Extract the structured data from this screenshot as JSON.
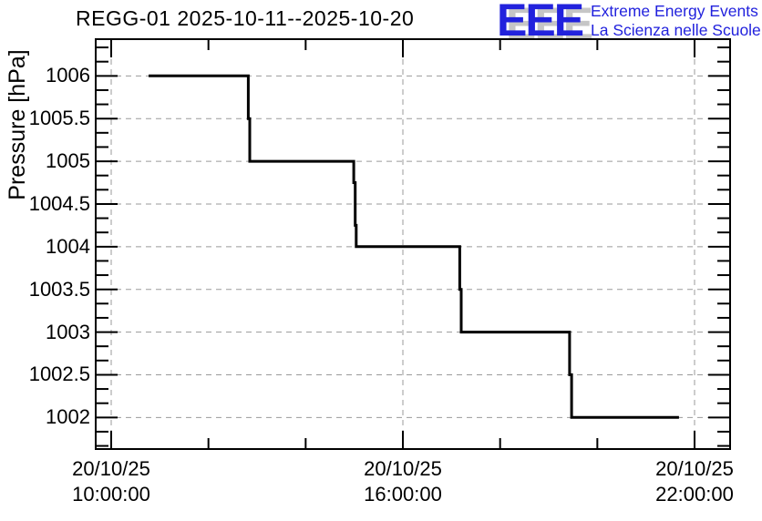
{
  "header": {
    "title": "REGG-01 2025-10-11--2025-10-20",
    "logo": {
      "acronym": "EEE",
      "line1": "Extreme Energy Events",
      "line2": "La Scienza nelle Scuole",
      "blue": "#2222dd",
      "shadow_gray": "#c6c6c6"
    }
  },
  "chart_data": {
    "type": "line",
    "line_style": "step",
    "title": "REGG-01 2025-10-11--2025-10-20",
    "xlabel": "",
    "ylabel": "Pressure [hPa]",
    "date": "20/10/25",
    "grid": true,
    "legend": "none",
    "line_color": "#000000",
    "grid_color": "#9a9a9a",
    "ylim": [
      1001.63,
      1006.43
    ],
    "x_range_hours": [
      9.681,
      22.731
    ],
    "yticks": [
      {
        "value": 1006,
        "label": "1006"
      },
      {
        "value": 1005.5,
        "label": "1005.5"
      },
      {
        "value": 1005,
        "label": "1005"
      },
      {
        "value": 1004.5,
        "label": "1004.5"
      },
      {
        "value": 1004,
        "label": "1004"
      },
      {
        "value": 1003.5,
        "label": "1003.5"
      },
      {
        "value": 1003,
        "label": "1003"
      },
      {
        "value": 1002.5,
        "label": "1002.5"
      },
      {
        "value": 1002,
        "label": "1002"
      }
    ],
    "xticks": [
      {
        "hours": 10,
        "date": "20/10/25",
        "time": "10:00:00"
      },
      {
        "hours": 16,
        "date": "20/10/25",
        "time": "16:00:00"
      },
      {
        "hours": 22,
        "date": "20/10/25",
        "time": "22:00:00"
      }
    ],
    "xticks_minor_hours": [
      12,
      14,
      18,
      20
    ],
    "series_points": [
      [
        10.77,
        1006
      ],
      [
        12.82,
        1006
      ],
      [
        12.82,
        1005.5
      ],
      [
        12.85,
        1005.5
      ],
      [
        12.85,
        1005
      ],
      [
        14.99,
        1005
      ],
      [
        14.99,
        1004.75
      ],
      [
        15.02,
        1004.75
      ],
      [
        15.02,
        1004.25
      ],
      [
        15.04,
        1004.25
      ],
      [
        15.04,
        1004
      ],
      [
        17.17,
        1004
      ],
      [
        17.17,
        1003.5
      ],
      [
        17.2,
        1003.5
      ],
      [
        17.2,
        1003
      ],
      [
        19.43,
        1003
      ],
      [
        19.43,
        1002.5
      ],
      [
        19.47,
        1002.5
      ],
      [
        19.47,
        1002
      ],
      [
        21.68,
        1002
      ]
    ],
    "steps_summary": [
      {
        "from": "20/10/25 10:46",
        "to": "20/10/25 12:49",
        "pressure_hPa": 1006
      },
      {
        "from": "20/10/25 12:49",
        "to": "20/10/25 14:59",
        "pressure_hPa": 1005
      },
      {
        "from": "20/10/25 14:59",
        "to": "20/10/25 17:10",
        "pressure_hPa": 1004
      },
      {
        "from": "20/10/25 17:10",
        "to": "20/10/25 19:26",
        "pressure_hPa": 1003
      },
      {
        "from": "20/10/25 19:26",
        "to": "20/10/25 21:41",
        "pressure_hPa": 1002
      }
    ]
  }
}
